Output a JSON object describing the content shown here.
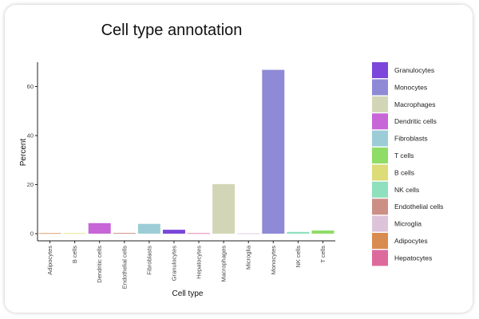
{
  "chart_data": {
    "type": "bar",
    "title": "Cell type annotation",
    "xlabel": "Cell type",
    "ylabel": "Percent",
    "ylim": [
      0,
      70
    ],
    "yticks": [
      0,
      20,
      40,
      60
    ],
    "grid": false,
    "legend_placement": "right",
    "categories": [
      "Adipocytes",
      "B cells",
      "Dendritic cells",
      "Endothelial cells",
      "Fibroblasts",
      "Granulocytes",
      "Hepatocytes",
      "Macrophages",
      "Microglia",
      "Monocytes",
      "NK cells",
      "T cells"
    ],
    "values": [
      0.2,
      0.2,
      4.3,
      0.3,
      4.0,
      1.6,
      0.2,
      20.2,
      0.1,
      66.8,
      0.7,
      1.3
    ],
    "colors": {
      "Adipocytes": "#d98c4f",
      "B cells": "#dcdc78",
      "Dendritic cells": "#c766d6",
      "Endothelial cells": "#cc8f86",
      "Fibroblasts": "#9ccdd6",
      "Granulocytes": "#7b46d9",
      "Hepatocytes": "#dd6a9c",
      "Macrophages": "#d3d6b6",
      "Microglia": "#dcc3d9",
      "Monocytes": "#8e8ad6",
      "NK cells": "#8fe0bd",
      "T cells": "#8fdc66"
    },
    "legend": [
      "Granulocytes",
      "Monocytes",
      "Macrophages",
      "Dendritic cells",
      "Fibroblasts",
      "T cells",
      "B cells",
      "NK cells",
      "Endothelial cells",
      "Microglia",
      "Adipocytes",
      "Hepatocytes"
    ]
  }
}
